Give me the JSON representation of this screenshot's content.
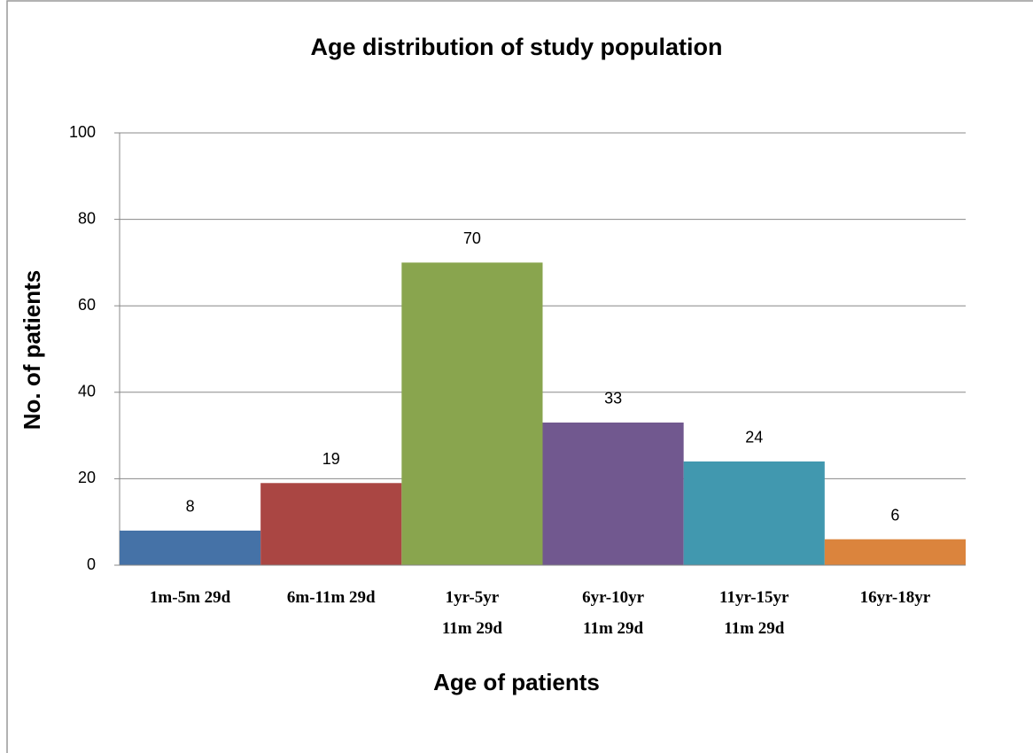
{
  "chart_data": {
    "type": "bar",
    "title": "Age distribution of study population",
    "x_label": "Age of patients",
    "y_label": "No. of patients",
    "categories": [
      [
        "1m-5m 29d"
      ],
      [
        "6m-11m 29d"
      ],
      [
        "1yr-5yr",
        "11m 29d"
      ],
      [
        "6yr-10yr",
        "11m 29d"
      ],
      [
        "11yr-15yr",
        "11m 29d"
      ],
      [
        "16yr-18yr"
      ]
    ],
    "values": [
      8,
      19,
      70,
      33,
      24,
      6
    ],
    "colors": [
      "#4572a7",
      "#aa4643",
      "#89a54e",
      "#71588f",
      "#4198af",
      "#db843d"
    ],
    "ylim": [
      0,
      100
    ],
    "yticks": [
      0,
      20,
      40,
      60,
      80,
      100
    ],
    "grid": true
  }
}
